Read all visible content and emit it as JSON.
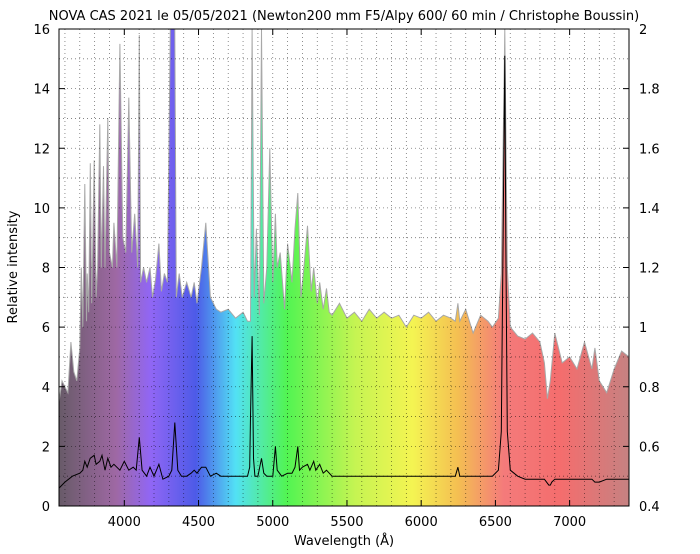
{
  "chart_data": {
    "type": "line",
    "title": "NOVA CAS 2021 le 05/05/2021 (Newton200 mm F5/Alpy 600/ 60 min / Christophe Boussin)",
    "xlabel": "Wavelength (Å)",
    "ylabel": "Relative intensity",
    "xlim": [
      3560,
      7400
    ],
    "ylim": [
      0,
      16
    ],
    "y2lim": [
      0.4,
      2
    ],
    "x_ticks": [
      "4000",
      "4500",
      "5000",
      "5500",
      "6000",
      "6500",
      "7000"
    ],
    "y_ticks": [
      "0",
      "2",
      "4",
      "6",
      "8",
      "10",
      "12",
      "14",
      "16"
    ],
    "y2_ticks": [
      "0.4",
      "0.6",
      "0.8",
      "1",
      "1.2",
      "1.4",
      "1.6",
      "1.8",
      "2"
    ],
    "grid": "dotted",
    "series": [
      {
        "role": "spectrum",
        "color": "#000000",
        "x": [
          3560,
          3600,
          3650,
          3700,
          3720,
          3734,
          3750,
          3770,
          3797,
          3810,
          3835,
          3850,
          3870,
          3889,
          3910,
          3930,
          3970,
          4000,
          4030,
          4060,
          4080,
          4101,
          4120,
          4150,
          4173,
          4200,
          4233,
          4260,
          4300,
          4320,
          4340,
          4360,
          4385,
          4420,
          4450,
          4471,
          4490,
          4520,
          4549,
          4580,
          4620,
          4650,
          4700,
          4750,
          4800,
          4830,
          4845,
          4850,
          4861,
          4870,
          4880,
          4900,
          4924,
          4940,
          4960,
          4980,
          5000,
          5018,
          5030,
          5060,
          5100,
          5130,
          5150,
          5169,
          5180,
          5200,
          5234,
          5250,
          5276,
          5290,
          5316,
          5340,
          5362,
          5400,
          5450,
          5500,
          5550,
          5600,
          5650,
          5700,
          5750,
          5800,
          5850,
          5900,
          5950,
          6000,
          6050,
          6100,
          6150,
          6200,
          6230,
          6247,
          6260,
          6300,
          6350,
          6400,
          6450,
          6480,
          6520,
          6540,
          6552,
          6563,
          6570,
          6580,
          6600,
          6650,
          6700,
          6750,
          6800,
          6830,
          6860,
          6870,
          6880,
          6900,
          6950,
          7000,
          7050,
          7100,
          7150,
          7170,
          7200,
          7250,
          7300,
          7350,
          7400
        ],
        "y": [
          0.6,
          0.8,
          1.0,
          1.1,
          1.2,
          1.5,
          1.3,
          1.6,
          1.7,
          1.4,
          1.5,
          1.7,
          1.2,
          1.6,
          1.3,
          1.4,
          1.2,
          1.5,
          1.2,
          1.3,
          1.2,
          2.3,
          1.2,
          1.0,
          1.3,
          1.0,
          1.4,
          0.9,
          1.0,
          1.2,
          2.8,
          1.2,
          1.0,
          1.0,
          1.1,
          1.2,
          1.1,
          1.3,
          1.3,
          1.0,
          1.1,
          1.0,
          1.0,
          1.0,
          1.0,
          1.0,
          1.3,
          3.0,
          5.7,
          1.6,
          1.0,
          1.0,
          1.6,
          1.1,
          1.0,
          1.0,
          1.0,
          2.0,
          1.2,
          1.0,
          1.1,
          1.1,
          1.3,
          2.0,
          1.2,
          1.3,
          1.4,
          1.2,
          1.5,
          1.2,
          1.4,
          1.1,
          1.2,
          1.0,
          1.0,
          1.0,
          1.0,
          1.0,
          1.0,
          1.0,
          1.0,
          1.0,
          1.0,
          1.0,
          1.0,
          1.0,
          1.0,
          1.0,
          1.0,
          1.0,
          1.0,
          1.3,
          1.0,
          1.0,
          1.0,
          1.0,
          1.0,
          1.0,
          1.2,
          2.5,
          9.0,
          15.1,
          9.0,
          2.5,
          1.2,
          1.0,
          0.9,
          0.9,
          0.9,
          0.9,
          0.7,
          0.7,
          0.8,
          0.9,
          0.9,
          0.9,
          0.9,
          0.9,
          0.9,
          0.8,
          0.8,
          0.9,
          0.9,
          0.9,
          0.9
        ]
      },
      {
        "role": "comparison-spectrum",
        "color": "#b0b0b0",
        "x": [
          3560,
          3580,
          3600,
          3620,
          3640,
          3660,
          3680,
          3700,
          3710,
          3720,
          3734,
          3745,
          3750,
          3760,
          3771,
          3780,
          3797,
          3810,
          3820,
          3835,
          3845,
          3860,
          3870,
          3889,
          3900,
          3920,
          3930,
          3950,
          3970,
          3990,
          4010,
          4030,
          4050,
          4070,
          4090,
          4101,
          4110,
          4130,
          4150,
          4173,
          4190,
          4210,
          4233,
          4250,
          4270,
          4290,
          4310,
          4330,
          4340,
          4350,
          4370,
          4390,
          4420,
          4450,
          4471,
          4490,
          4520,
          4549,
          4580,
          4620,
          4650,
          4700,
          4750,
          4800,
          4830,
          4850,
          4861,
          4875,
          4890,
          4910,
          4924,
          4940,
          4960,
          4980,
          5000,
          5018,
          5030,
          5050,
          5080,
          5100,
          5130,
          5150,
          5169,
          5190,
          5210,
          5234,
          5260,
          5276,
          5300,
          5316,
          5340,
          5362,
          5380,
          5400,
          5450,
          5500,
          5550,
          5600,
          5650,
          5700,
          5750,
          5800,
          5850,
          5900,
          5950,
          6000,
          6050,
          6100,
          6150,
          6200,
          6230,
          6247,
          6260,
          6300,
          6350,
          6400,
          6450,
          6480,
          6520,
          6540,
          6563,
          6580,
          6600,
          6650,
          6700,
          6750,
          6800,
          6830,
          6850,
          6870,
          6900,
          6950,
          7000,
          7050,
          7100,
          7150,
          7170,
          7200,
          7250,
          7300,
          7350,
          7400
        ],
        "y": [
          3.5,
          4.2,
          4.0,
          3.8,
          5.5,
          4.5,
          4.2,
          5.3,
          8.0,
          6.0,
          10.8,
          6.2,
          7.8,
          6.5,
          11.5,
          6.8,
          11.6,
          7.0,
          8.0,
          12.8,
          8.0,
          11.4,
          8.0,
          13.0,
          8.5,
          8.0,
          9.5,
          8.0,
          15.5,
          9.0,
          8.5,
          13.7,
          8.5,
          9.8,
          8.0,
          15.8,
          7.5,
          8.0,
          7.5,
          8.0,
          7.0,
          7.6,
          8.8,
          7.2,
          7.8,
          7.5,
          16.0,
          16.0,
          16.0,
          7.0,
          7.8,
          7.0,
          7.5,
          7.0,
          7.5,
          6.8,
          8.0,
          9.5,
          7.0,
          6.6,
          6.5,
          6.6,
          6.3,
          6.5,
          6.2,
          6.2,
          16.0,
          7.0,
          9.3,
          6.4,
          16.0,
          6.8,
          8.0,
          12.0,
          7.5,
          9.8,
          8.0,
          8.5,
          6.6,
          8.8,
          7.5,
          9.3,
          10.5,
          7.0,
          8.0,
          9.4,
          7.2,
          8.0,
          6.8,
          7.5,
          6.6,
          7.3,
          6.5,
          6.4,
          6.8,
          6.3,
          6.5,
          6.2,
          6.6,
          6.3,
          6.5,
          6.3,
          6.4,
          6.0,
          6.4,
          6.3,
          6.5,
          6.2,
          6.4,
          6.3,
          6.2,
          6.8,
          6.2,
          6.6,
          5.8,
          6.4,
          6.2,
          6.0,
          6.3,
          7.8,
          16.0,
          8.0,
          6.0,
          5.7,
          5.6,
          5.8,
          5.5,
          4.8,
          3.6,
          4.2,
          5.8,
          4.8,
          5.0,
          4.6,
          5.5,
          4.6,
          5.3,
          4.2,
          3.8,
          4.6,
          5.2,
          5.0
        ]
      }
    ]
  }
}
